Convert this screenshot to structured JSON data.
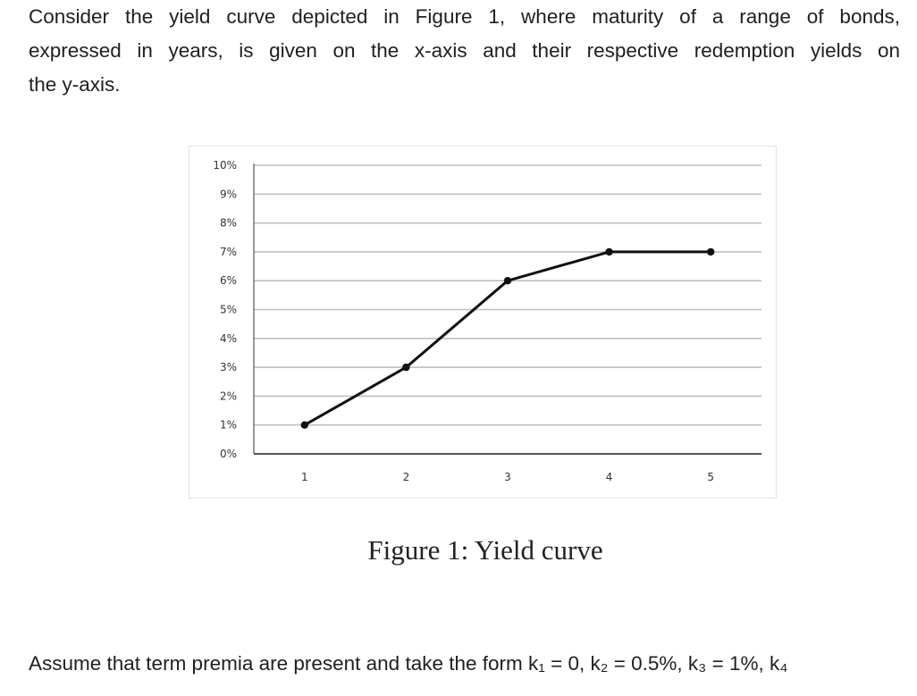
{
  "intro": {
    "lines": [
      "Consider the yield curve depicted in Figure 1, where maturity of a range of bonds,",
      "expressed in years, is given on the x-axis and their respective redemption yields on",
      "the y-axis."
    ]
  },
  "figure": {
    "caption": "Figure 1: Yield curve"
  },
  "outro": {
    "text": "Assume that term premia are present and take the form k₁ = 0, k₂ = 0.5%, k₃ = 1%, k₄"
  },
  "chart_data": {
    "type": "line",
    "title": "",
    "xlabel": "",
    "ylabel": "",
    "x": [
      1,
      2,
      3,
      4,
      5
    ],
    "series": [
      {
        "values": [
          1,
          3,
          6,
          7,
          7
        ]
      }
    ],
    "x_tick_labels": [
      "1",
      "2",
      "3",
      "4",
      "5"
    ],
    "y_tick_labels": [
      "0%",
      "1%",
      "2%",
      "3%",
      "4%",
      "5%",
      "6%",
      "7%",
      "8%",
      "9%",
      "10%"
    ],
    "ylim": [
      0,
      10
    ],
    "xlim": [
      0.5,
      5.5
    ],
    "grid": true,
    "legend": "none",
    "colors": {
      "line": "#111111",
      "grid": "#bfbfbf",
      "axis": "#555555"
    }
  }
}
